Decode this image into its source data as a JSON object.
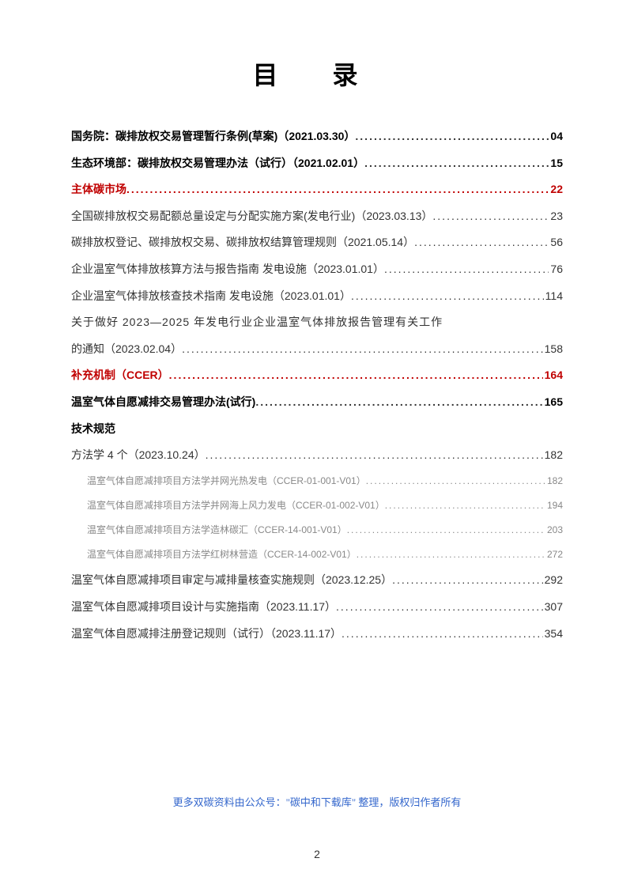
{
  "title": "目   录",
  "entries": [
    {
      "label": "国务院：碳排放权交易管理暂行条例(草案)（2021.03.30）",
      "page": "04",
      "style": "bold"
    },
    {
      "label": "生态环境部：碳排放权交易管理办法（试行）（2021.02.01）",
      "page": "15",
      "style": "bold"
    },
    {
      "label": "主体碳市场",
      "page": "22",
      "style": "red"
    },
    {
      "label": "全国碳排放权交易配额总量设定与分配实施方案(发电行业)（2023.03.13）",
      "page": "23",
      "style": "normal"
    },
    {
      "label": "碳排放权登记、碳排放权交易、碳排放权结算管理规则（2021.05.14）",
      "page": "56",
      "style": "normal"
    },
    {
      "label": "企业温室气体排放核算方法与报告指南  发电设施（2023.01.01）",
      "page": "76",
      "style": "normal"
    },
    {
      "label": "企业温室气体排放核查技术指南  发电设施（2023.01.01）",
      "page": "114",
      "style": "normal"
    },
    {
      "label": "关于做好 2023—2025 年发电行业企业温室气体排放报告管理有关工作",
      "label2": "的通知（2023.02.04）",
      "page": "158",
      "style": "multiline"
    },
    {
      "label": "补充机制（CCER）",
      "page": "164",
      "style": "red"
    },
    {
      "label": "温室气体自愿减排交易管理办法(试行)",
      "page": "165",
      "style": "bold"
    },
    {
      "label": "技术规范",
      "style": "heading-only"
    },
    {
      "label": "方法学 4 个（2023.10.24）",
      "page": "182",
      "style": "normal"
    },
    {
      "label": "温室气体自愿减排项目方法学并网光热发电（CCER-01-001-V01）",
      "page": "182",
      "style": "sub"
    },
    {
      "label": "温室气体自愿减排项目方法学并网海上风力发电（CCER-01-002-V01）",
      "page": "194",
      "style": "sub"
    },
    {
      "label": "温室气体自愿减排项目方法学造林碳汇（CCER-14-001-V01）",
      "page": "203",
      "style": "sub"
    },
    {
      "label": "温室气体自愿减排项目方法学红树林营造（CCER-14-002-V01）",
      "page": "272",
      "style": "sub"
    },
    {
      "label": "温室气体自愿减排项目审定与减排量核查实施规则（2023.12.25）",
      "page": "292",
      "style": "normal"
    },
    {
      "label": "温室气体自愿减排项目设计与实施指南（2023.11.17）",
      "page": "307",
      "style": "normal"
    },
    {
      "label": "温室气体自愿减排注册登记规则（试行）（2023.11.17）",
      "page": "354",
      "style": "normal"
    }
  ],
  "watermark": "更多双碳资料由公众号：\"碳中和下载库\" 整理，版权归作者所有",
  "pageNumber": "2",
  "colors": {
    "red": "#c00000",
    "text": "#333333",
    "sub": "#888888",
    "watermark": "#3366cc"
  }
}
